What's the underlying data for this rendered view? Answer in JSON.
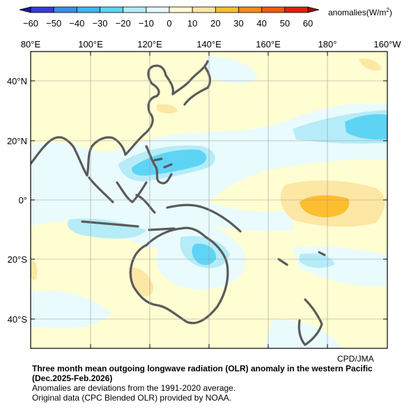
{
  "legend": {
    "units_text": "anomalies(W/m",
    "units_exp": "2",
    "units_close": ")",
    "ticks": [
      "−60",
      "−50",
      "−40",
      "−30",
      "−20",
      "−10",
      "0",
      "10",
      "20",
      "30",
      "40",
      "50",
      "60"
    ],
    "colors": [
      "#3b3bd6",
      "#3c8ee6",
      "#3eb6ef",
      "#5ed4f5",
      "#b5ecf8",
      "#e9fbfc",
      "#fffed2",
      "#fde7a4",
      "#fdbe2f",
      "#fb8a1a",
      "#f05a12",
      "#e02010"
    ]
  },
  "map": {
    "lon_labels": [
      "80°E",
      "100°E",
      "120°E",
      "140°E",
      "160°E",
      "180°",
      "160°W"
    ],
    "lat_labels": [
      "40°N",
      "20°N",
      "0°",
      "20°S",
      "40°S"
    ],
    "region": "western Pacific",
    "background_color": "#fffed2",
    "coast_color": "#5a5a5a"
  },
  "credit": "CPD/JMA",
  "caption": {
    "title_line1": "Three month mean outgoing longwave radiation (OLR) anomaly in the western Pacific",
    "title_line2": "(Dec.2025-Feb.2026)",
    "line3": "Anomalies are deviations from the 1991-2020 average.",
    "line4": "Original data (CPC Blended OLR) provided by NOAA."
  }
}
